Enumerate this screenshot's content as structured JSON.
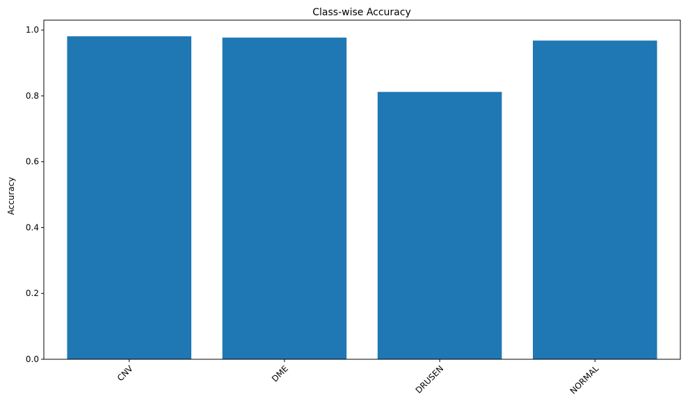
{
  "chart_data": {
    "type": "bar",
    "title": "Class-wise Accuracy",
    "xlabel": "",
    "ylabel": "Accuracy",
    "categories": [
      "CNV",
      "DME",
      "DRUSEN",
      "NORMAL"
    ],
    "values": [
      0.981,
      0.977,
      0.812,
      0.968
    ],
    "ylim": [
      0,
      1.03
    ],
    "yticks": [
      0.0,
      0.2,
      0.4,
      0.6,
      0.8,
      1.0
    ],
    "ytick_labels": [
      "0.0",
      "0.2",
      "0.4",
      "0.6",
      "0.8",
      "1.0"
    ],
    "xtick_rotation": 45,
    "grid": false,
    "bar_color": "#1f77b4"
  }
}
